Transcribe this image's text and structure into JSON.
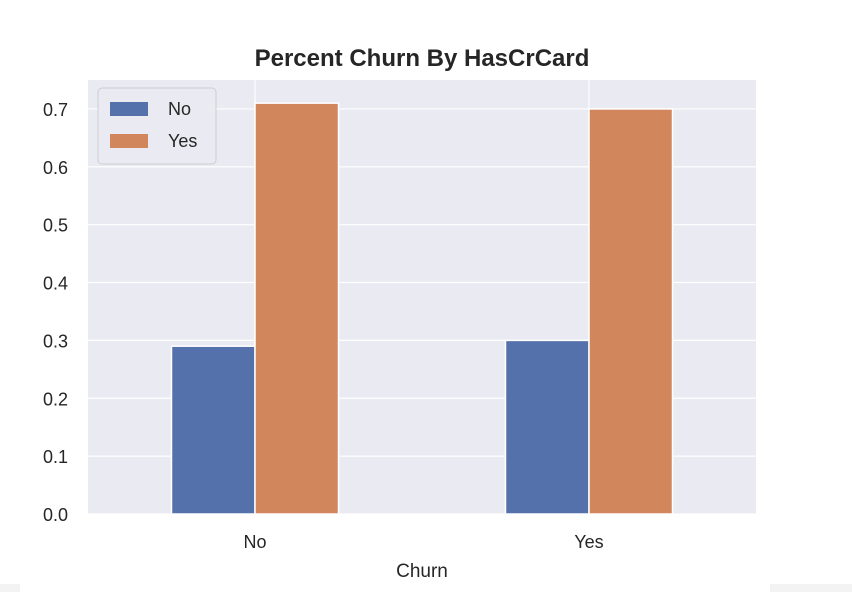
{
  "chart_data": {
    "type": "bar",
    "title": "Percent Churn By HasCrCard",
    "xlabel": "Churn",
    "ylabel": "",
    "categories": [
      "No",
      "Yes"
    ],
    "series": [
      {
        "name": "No",
        "values": [
          0.29,
          0.3
        ],
        "color": "#5471ab"
      },
      {
        "name": "Yes",
        "values": [
          0.71,
          0.7
        ],
        "color": "#d1865b"
      }
    ],
    "ylim": [
      0,
      0.75
    ],
    "yticks": [
      "0.0",
      "0.1",
      "0.2",
      "0.3",
      "0.4",
      "0.5",
      "0.6",
      "0.7"
    ],
    "grid": true,
    "legend_position": "top-left",
    "background_color": "#eaeaf2"
  }
}
